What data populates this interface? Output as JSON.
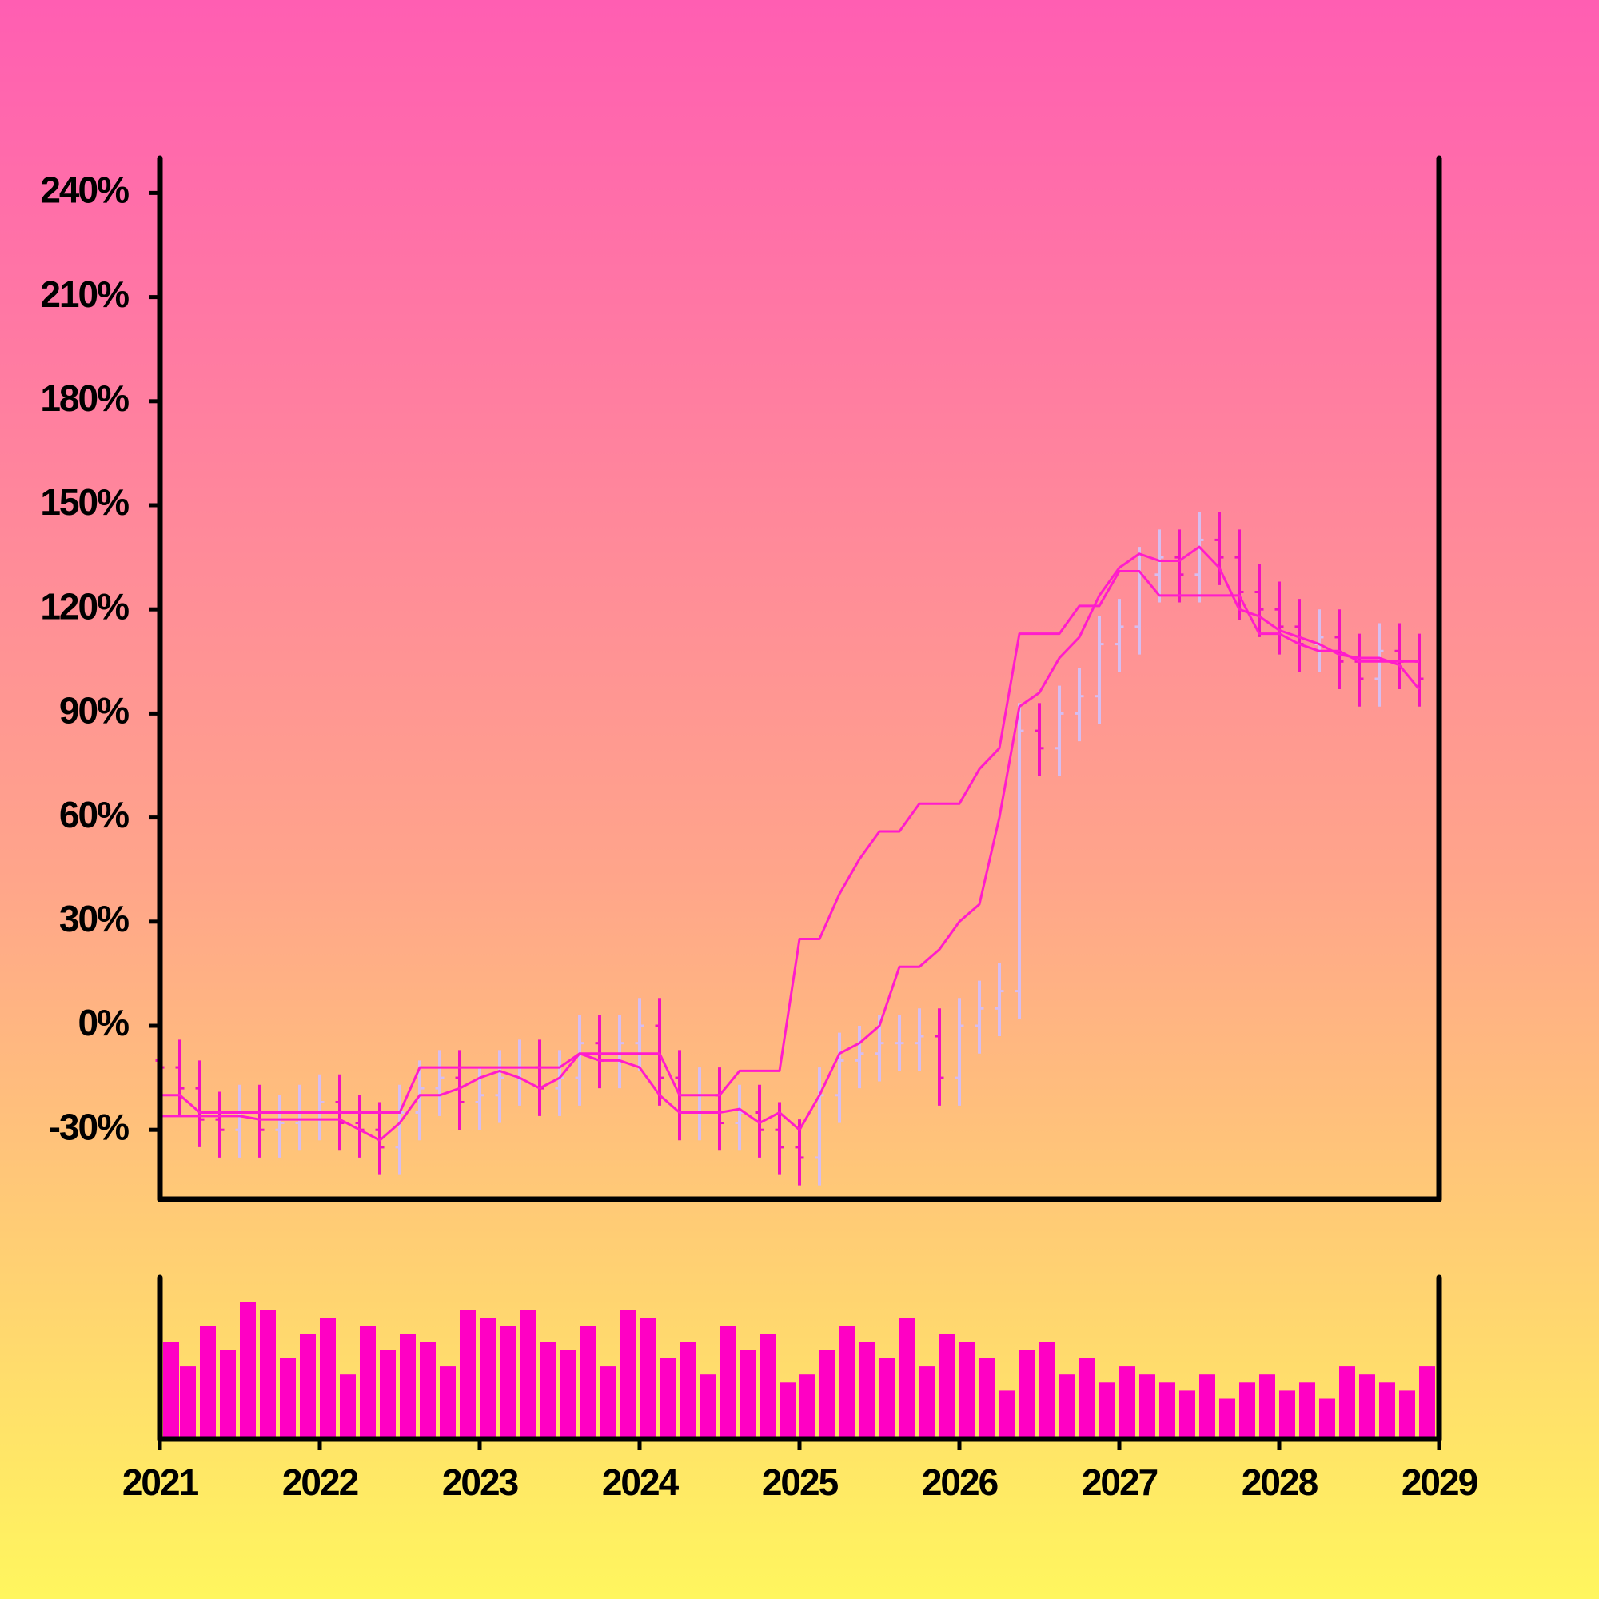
{
  "chart_data": [
    {
      "type": "ohlc",
      "xlim": [
        2021,
        2029
      ],
      "x": [
        2021,
        2021.125,
        2021.25,
        2021.375,
        2021.5,
        2021.625,
        2021.75,
        2021.875,
        2022,
        2022.125,
        2022.25,
        2022.375,
        2022.5,
        2022.625,
        2022.75,
        2022.875,
        2023,
        2023.125,
        2023.25,
        2023.375,
        2023.5,
        2023.625,
        2023.75,
        2023.875,
        2024,
        2024.125,
        2024.25,
        2024.375,
        2024.5,
        2024.625,
        2024.75,
        2024.875,
        2025,
        2025.125,
        2025.25,
        2025.375,
        2025.5,
        2025.625,
        2025.75,
        2025.875,
        2026,
        2026.125,
        2026.25,
        2026.375,
        2026.5,
        2026.625,
        2026.75,
        2026.875,
        2027,
        2027.125,
        2027.25,
        2027.375,
        2027.5,
        2027.625,
        2027.75,
        2027.875,
        2028,
        2028.125,
        2028.25,
        2028.375,
        2028.5,
        2028.625,
        2028.75,
        2028.875
      ],
      "open": [
        -10,
        -12,
        -18,
        -27,
        -30,
        -25,
        -30,
        -28,
        -25,
        -22,
        -28,
        -30,
        -35,
        -25,
        -18,
        -15,
        -22,
        -20,
        -15,
        -12,
        -18,
        -15,
        -5,
        -10,
        -5,
        0,
        -15,
        -25,
        -20,
        -28,
        -25,
        -30,
        -35,
        -38,
        -20,
        -10,
        -8,
        -5,
        -5,
        -3,
        -15,
        0,
        5,
        10,
        85,
        80,
        90,
        95,
        110,
        115,
        130,
        135,
        130,
        140,
        135,
        125,
        120,
        115,
        110,
        112,
        105,
        100,
        108,
        105
      ],
      "high": [
        -2,
        -4,
        -10,
        -19,
        -17,
        -17,
        -20,
        -17,
        -14,
        -14,
        -20,
        -22,
        -17,
        -10,
        -7,
        -7,
        -12,
        -7,
        -4,
        -4,
        -7,
        3,
        3,
        3,
        8,
        8,
        -7,
        -12,
        -12,
        -17,
        -17,
        -22,
        -27,
        -12,
        -2,
        0,
        3,
        3,
        5,
        5,
        8,
        13,
        18,
        93,
        93,
        98,
        103,
        118,
        123,
        138,
        143,
        143,
        148,
        148,
        143,
        133,
        128,
        123,
        120,
        120,
        113,
        116,
        116,
        113
      ],
      "low": [
        -20,
        -26,
        -35,
        -38,
        -38,
        -38,
        -38,
        -36,
        -33,
        -36,
        -38,
        -43,
        -43,
        -33,
        -26,
        -30,
        -30,
        -28,
        -23,
        -26,
        -26,
        -23,
        -18,
        -18,
        -13,
        -23,
        -33,
        -33,
        -36,
        -36,
        -38,
        -43,
        -46,
        -46,
        -28,
        -18,
        -16,
        -13,
        -13,
        -23,
        -23,
        -8,
        -3,
        2,
        72,
        72,
        82,
        87,
        102,
        107,
        122,
        122,
        122,
        127,
        117,
        112,
        107,
        102,
        102,
        97,
        92,
        92,
        97,
        92
      ],
      "close": [
        -12,
        -18,
        -27,
        -30,
        -25,
        -30,
        -28,
        -25,
        -22,
        -28,
        -30,
        -35,
        -25,
        -18,
        -15,
        -22,
        -20,
        -15,
        -12,
        -18,
        -15,
        -5,
        -10,
        -5,
        0,
        -15,
        -25,
        -20,
        -28,
        -25,
        -30,
        -35,
        -38,
        -20,
        -10,
        -8,
        -5,
        -5,
        -3,
        -15,
        0,
        5,
        10,
        85,
        80,
        90,
        95,
        110,
        115,
        130,
        135,
        130,
        140,
        135,
        125,
        120,
        115,
        110,
        112,
        105,
        100,
        108,
        105,
        100
      ],
      "up_color": "#d6bdf0",
      "down_color": "#f012c0",
      "series": [
        {
          "color": "#ff1ccc",
          "values": [
            -20,
            -20,
            -25,
            -25,
            -25,
            -25,
            -25,
            -25,
            -25,
            -25,
            -25,
            -25,
            -25,
            -12,
            -12,
            -12,
            -12,
            -12,
            -12,
            -12,
            -12,
            -8,
            -8,
            -8,
            -8,
            -8,
            -20,
            -20,
            -20,
            -13,
            -13,
            -13,
            25,
            25,
            38,
            48,
            56,
            56,
            64,
            64,
            64,
            74,
            80,
            113,
            113,
            113,
            121,
            121,
            131,
            131,
            124,
            124,
            124,
            124,
            124,
            113,
            113,
            110,
            108,
            108,
            105,
            105,
            105,
            105
          ]
        },
        {
          "color": "#ff1ccc",
          "values": [
            -26,
            -26,
            -26,
            -26,
            -26,
            -27,
            -27,
            -27,
            -27,
            -27,
            -30,
            -33,
            -28,
            -20,
            -20,
            -18,
            -15,
            -13,
            -15,
            -18,
            -15,
            -8,
            -10,
            -10,
            -12,
            -20,
            -25,
            -25,
            -25,
            -24,
            -28,
            -25,
            -30,
            -20,
            -8,
            -5,
            0,
            17,
            17,
            22,
            30,
            35,
            60,
            92,
            96,
            106,
            112,
            124,
            132,
            136,
            134,
            134,
            138,
            132,
            120,
            118,
            114,
            112,
            110,
            107,
            106,
            106,
            104,
            97
          ]
        }
      ],
      "ylim": [
        -50,
        250
      ],
      "yticks": [
        {
          "value": -30,
          "label": "-30%"
        },
        {
          "value": 0,
          "label": "0%"
        },
        {
          "value": 30,
          "label": "30%"
        },
        {
          "value": 60,
          "label": "60%"
        },
        {
          "value": 90,
          "label": "90%"
        },
        {
          "value": 120,
          "label": "120%"
        },
        {
          "value": 150,
          "label": "150%"
        },
        {
          "value": 180,
          "label": "180%"
        },
        {
          "value": 210,
          "label": "210%"
        },
        {
          "value": 240,
          "label": "240%"
        }
      ]
    },
    {
      "type": "bar",
      "color": "#ff00c4",
      "values": [
        60,
        45,
        70,
        55,
        85,
        80,
        50,
        65,
        75,
        40,
        70,
        55,
        65,
        60,
        45,
        80,
        75,
        70,
        80,
        60,
        55,
        70,
        45,
        80,
        75,
        50,
        60,
        40,
        70,
        55,
        65,
        35,
        40,
        55,
        70,
        60,
        50,
        75,
        45,
        65,
        60,
        50,
        30,
        55,
        60,
        40,
        50,
        35,
        45,
        40,
        35,
        30,
        40,
        25,
        35,
        40,
        30,
        35,
        25,
        45,
        40,
        35,
        30,
        45
      ],
      "ylim": [
        0,
        100
      ],
      "xlim": [
        2021,
        2029
      ],
      "xticks": [
        2021,
        2022,
        2023,
        2024,
        2025,
        2026,
        2027,
        2028,
        2029
      ]
    }
  ]
}
